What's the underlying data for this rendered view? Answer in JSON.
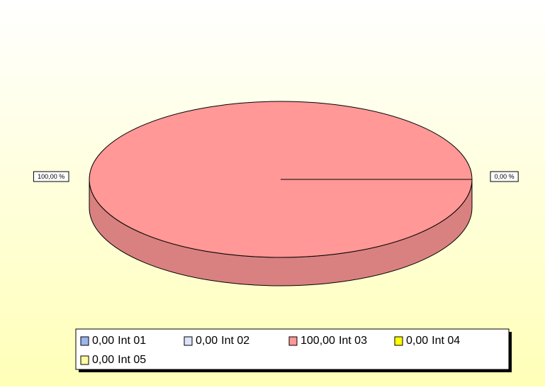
{
  "chart_data": {
    "type": "pie3d",
    "categories": [
      "Int 01",
      "Int 02",
      "Int 03",
      "Int 04",
      "Int 05"
    ],
    "values": [
      0,
      0,
      100,
      0,
      0
    ],
    "legend_labels": [
      "0,00",
      "0,00",
      "100,00",
      "0,00",
      "0,00"
    ],
    "pct_labels": [
      "0,00 %",
      null,
      "100,00 %",
      null,
      null
    ],
    "colors": [
      "#9cb4f0",
      "#dde4f8",
      "#ff9896",
      "#ffff00",
      "#ffffa0"
    ],
    "legend": "bottom"
  }
}
